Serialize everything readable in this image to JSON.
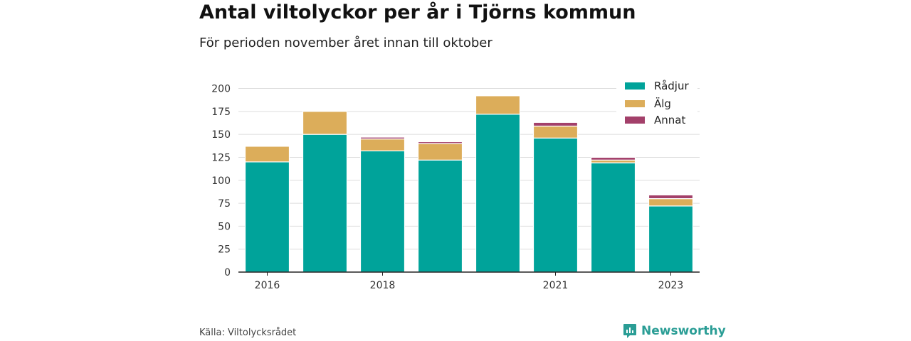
{
  "title": "Antal viltolyckor per år i Tjörns kommun",
  "subtitle": "För perioden november året innan till oktober",
  "source": "Källa: Viltolycksrådet",
  "brand": {
    "name": "Newsworthy",
    "icon": "newsworthy-logo-icon"
  },
  "colors": {
    "radjur": "#00a39a",
    "alg": "#dcad5a",
    "annat": "#a3406a",
    "grid": "#dddddd",
    "axis": "#222222",
    "brand": "#2a9d95"
  },
  "chart_data": {
    "type": "bar",
    "stacked": true,
    "categories": [
      "2016",
      "2017",
      "2018",
      "2019",
      "2020",
      "2021",
      "2022",
      "2023"
    ],
    "tick_labels": [
      "2016",
      "",
      "2018",
      "",
      "",
      "2021",
      "",
      "2023"
    ],
    "series": [
      {
        "name": "Rådjur",
        "values": [
          120,
          150,
          132,
          122,
          172,
          146,
          119,
          72
        ]
      },
      {
        "name": "Älg",
        "values": [
          17,
          25,
          13,
          18,
          20,
          13,
          3,
          8
        ]
      },
      {
        "name": "Annat",
        "values": [
          0,
          0,
          2,
          2,
          0,
          4,
          3,
          4
        ]
      }
    ],
    "ylim": [
      0,
      200
    ],
    "yticks": [
      0,
      25,
      50,
      75,
      100,
      125,
      150,
      175,
      200
    ],
    "grid": true,
    "legend_position": "top-right"
  }
}
